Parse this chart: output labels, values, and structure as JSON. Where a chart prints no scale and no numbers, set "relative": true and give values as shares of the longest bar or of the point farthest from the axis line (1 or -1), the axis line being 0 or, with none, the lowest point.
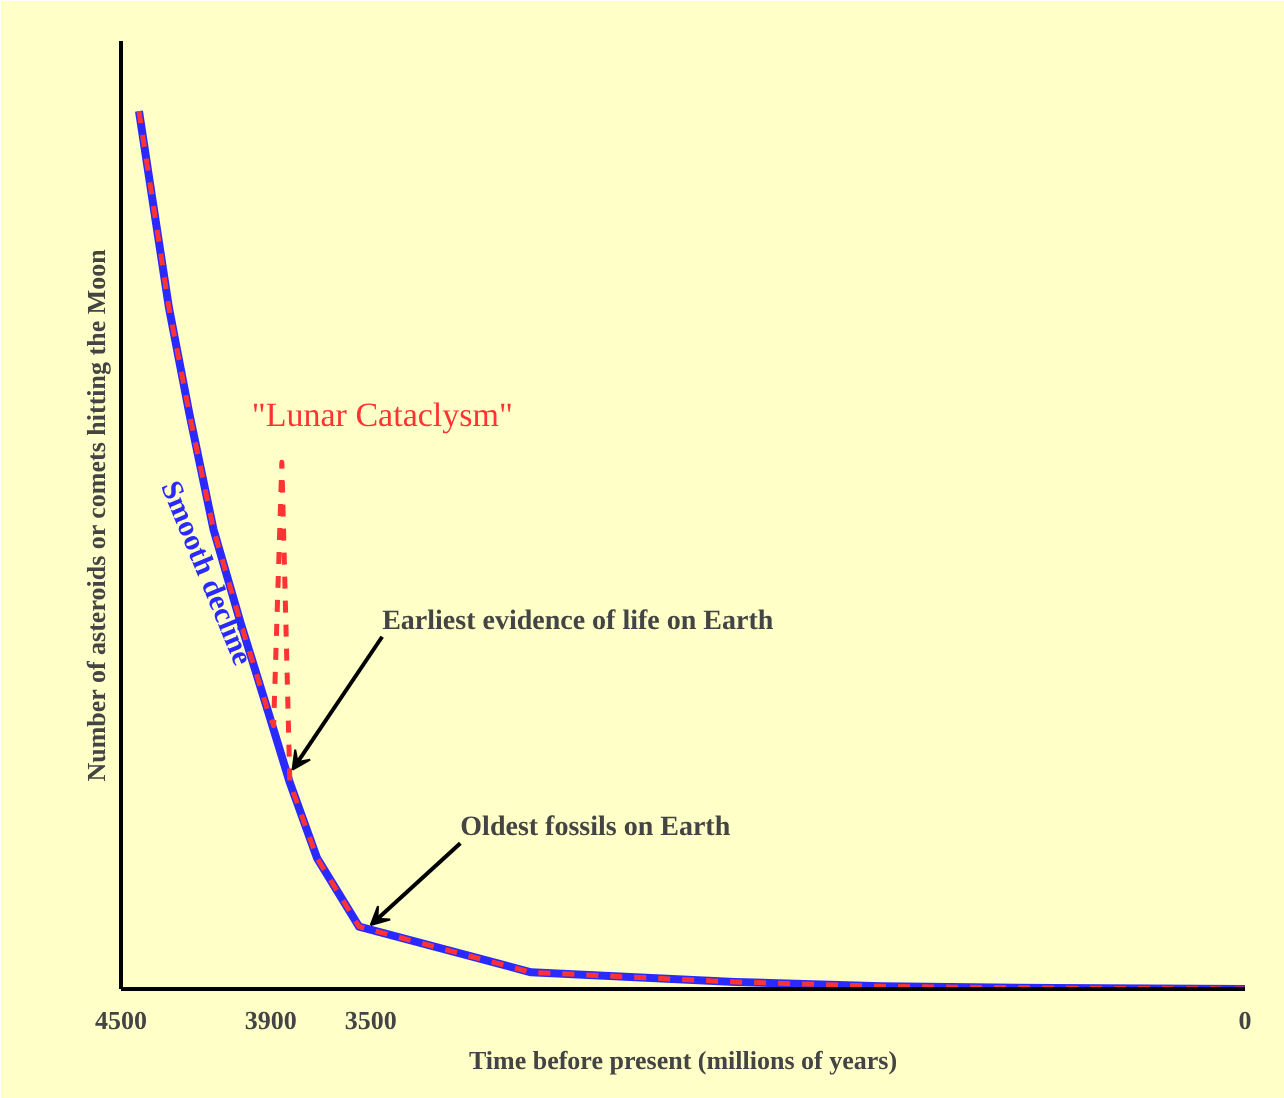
{
  "chart_data": {
    "type": "line",
    "relative": true,
    "xlabel": "Time before present (millions of years)",
    "ylabel": "Number of asteroids or comets hitting the Moon",
    "xlim": [
      4500,
      0
    ],
    "xticks": [
      4500,
      3900,
      3500,
      0
    ],
    "series": [
      {
        "name": "\"Lunar Cataclysm\"",
        "color": "#ff3333",
        "line_style": "dashed",
        "x": [
          4428,
          4308,
          4226,
          4130,
          4020,
          3910,
          3889,
          3856,
          3824,
          3715,
          3547,
          2858,
          2042,
          1458,
          758,
          0
        ],
        "values": [
          1.0,
          0.776,
          0.655,
          0.524,
          0.416,
          0.315,
          0.3,
          0.6,
          0.235,
          0.149,
          0.071,
          0.019,
          0.008,
          0.003,
          0.001,
          0
        ]
      },
      {
        "name": "Smooth decline",
        "color": "#2a2aff",
        "line_style": "solid",
        "x": [
          4428,
          4308,
          4226,
          4130,
          4020,
          3910,
          3824,
          3715,
          3547,
          2858,
          2042,
          1458,
          758,
          0
        ],
        "values": [
          1.0,
          0.776,
          0.655,
          0.524,
          0.416,
          0.315,
          0.235,
          0.149,
          0.071,
          0.019,
          0.008,
          0.003,
          0.001,
          0
        ]
      }
    ],
    "annotations": [
      {
        "text": "Earliest evidence of life on Earth",
        "x": 3813,
        "y": 0.25
      },
      {
        "text": "Oldest fossils on Earth",
        "x": 3500,
        "y": 0.073
      }
    ],
    "grid": false
  }
}
